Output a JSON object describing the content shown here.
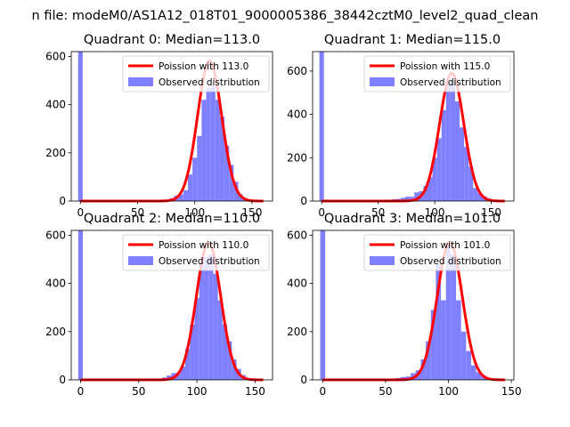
{
  "suptitle": "n file: modeM0/AS1A12_018T01_9000005386_38442cztM0_level2_quad_clean",
  "colors": {
    "hist": "#8080ff",
    "fit": "#ff0000",
    "legend_bg": "#ffffff",
    "legend_border": "#cccccc"
  },
  "chart_data": [
    {
      "type": "bar",
      "title": "Quadrant 0: Median=113.0",
      "xlim": [
        -8,
        168
      ],
      "ylim": [
        0,
        620
      ],
      "xticks": [
        0,
        50,
        100,
        150
      ],
      "yticks": [
        0,
        200,
        400,
        600
      ],
      "hist_bin_width": 4,
      "hist_centers": [
        0,
        68,
        72,
        76,
        80,
        84,
        88,
        92,
        96,
        100,
        104,
        108,
        112,
        116,
        120,
        124,
        128,
        132,
        136,
        140,
        144,
        148,
        152,
        156
      ],
      "hist_counts": [
        620,
        1,
        2,
        3,
        12,
        22,
        28,
        45,
        110,
        180,
        270,
        420,
        470,
        480,
        420,
        350,
        230,
        150,
        80,
        28,
        12,
        5,
        2,
        1
      ],
      "fit_mean": 113.0,
      "fit_amplitude": 580,
      "fit_sigma": 10.6,
      "fit_range": [
        0,
        160
      ],
      "legend": [
        "Poission with 113.0",
        "Observed distribution"
      ]
    },
    {
      "type": "bar",
      "title": "Quadrant 1: Median=115.0",
      "xlim": [
        -8,
        170
      ],
      "ylim": [
        0,
        690
      ],
      "xticks": [
        0,
        50,
        100,
        150
      ],
      "yticks": [
        0,
        200,
        400,
        600
      ],
      "hist_bin_width": 4,
      "hist_centers": [
        0,
        60,
        64,
        68,
        72,
        76,
        80,
        84,
        88,
        92,
        96,
        100,
        104,
        108,
        112,
        116,
        120,
        124,
        128,
        132,
        136,
        140,
        144,
        148,
        152,
        156,
        160
      ],
      "hist_counts": [
        690,
        3,
        8,
        10,
        15,
        20,
        20,
        40,
        45,
        70,
        110,
        200,
        290,
        420,
        540,
        560,
        460,
        340,
        250,
        160,
        60,
        38,
        22,
        12,
        7,
        5,
        2
      ],
      "fit_mean": 115.0,
      "fit_amplitude": 590,
      "fit_sigma": 10.7,
      "fit_range": [
        0,
        162
      ],
      "legend": [
        "Poission with 115.0",
        "Observed distribution"
      ]
    },
    {
      "type": "bar",
      "title": "Quadrant 2: Median=110.0",
      "xlim": [
        -8,
        165
      ],
      "ylim": [
        0,
        620
      ],
      "xticks": [
        0,
        50,
        100,
        150
      ],
      "yticks": [
        0,
        200,
        400,
        600
      ],
      "hist_bin_width": 4,
      "hist_centers": [
        0,
        64,
        68,
        72,
        76,
        80,
        84,
        88,
        92,
        96,
        100,
        104,
        108,
        112,
        116,
        120,
        124,
        128,
        132,
        136,
        140,
        144,
        148,
        152
      ],
      "hist_counts": [
        620,
        2,
        5,
        10,
        18,
        28,
        30,
        55,
        130,
        230,
        340,
        480,
        510,
        520,
        440,
        330,
        230,
        160,
        85,
        45,
        20,
        8,
        4,
        2
      ],
      "fit_mean": 110.0,
      "fit_amplitude": 570,
      "fit_sigma": 10.5,
      "fit_range": [
        0,
        157
      ],
      "legend": [
        "Poission with 110.0",
        "Observed distribution"
      ]
    },
    {
      "type": "bar",
      "title": "Quadrant 3: Median=101.0",
      "xlim": [
        -8,
        152
      ],
      "ylim": [
        0,
        620
      ],
      "xticks": [
        0,
        50,
        100,
        150
      ],
      "yticks": [
        0,
        200,
        400,
        600
      ],
      "hist_bin_width": 4,
      "hist_centers": [
        0,
        48,
        52,
        56,
        60,
        64,
        68,
        72,
        76,
        80,
        84,
        88,
        92,
        96,
        100,
        104,
        108,
        112,
        116,
        120,
        124,
        128,
        132,
        136,
        140
      ],
      "hist_counts": [
        620,
        1,
        3,
        6,
        8,
        12,
        14,
        28,
        40,
        85,
        160,
        290,
        480,
        330,
        560,
        520,
        330,
        200,
        120,
        60,
        32,
        18,
        8,
        4,
        2
      ],
      "fit_mean": 101.0,
      "fit_amplitude": 570,
      "fit_sigma": 10.0,
      "fit_range": [
        0,
        145
      ],
      "legend": [
        "Poission with 101.0",
        "Observed distribution"
      ]
    }
  ]
}
